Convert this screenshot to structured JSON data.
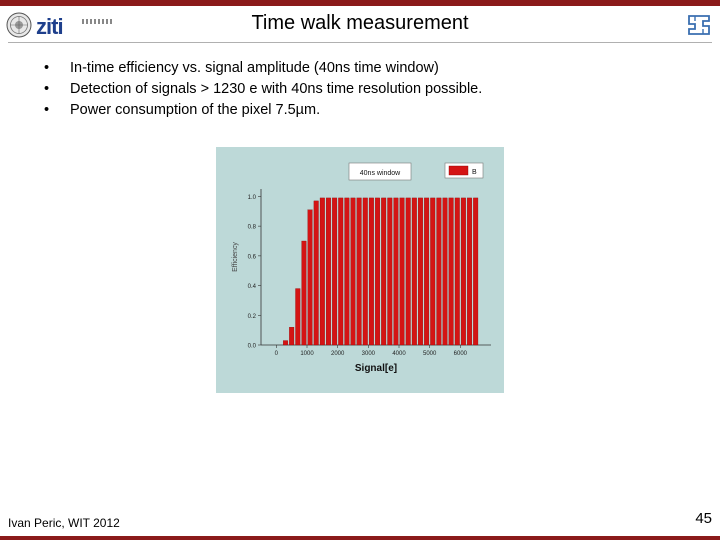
{
  "slide": {
    "title": "Time walk measurement",
    "bullets": [
      "In-time efficiency vs. signal amplitude (40ns time window)",
      "Detection of signals > 1230 e with 40ns time resolution possible.",
      "Power consumption of the pixel 7.5µm."
    ],
    "bullet_glyph": "•",
    "footer": "Ivan Peric, WIT 2012",
    "page_number": "45",
    "accent_color": "#8b1a1a"
  },
  "logos": {
    "left_seal": "university-seal-icon",
    "left_wordmark": "ziti",
    "right": "institute-logo-icon"
  },
  "chart_data": {
    "type": "bar",
    "title_box": "40ns window",
    "legend": [
      "B"
    ],
    "xlabel": "Signal[e]",
    "ylabel": "Efficiency",
    "xlim": [
      -500,
      7000
    ],
    "ylim": [
      0,
      1.05
    ],
    "xticks": [
      "0",
      "1000",
      "2000",
      "3000",
      "4000",
      "5000",
      "6000"
    ],
    "yticks": [
      "0.0",
      "0.2",
      "0.4",
      "0.6",
      "0.8",
      "1.0"
    ],
    "bar_color": "#d41414",
    "background": "#bdd9d8",
    "bar_width": 150,
    "x": [
      300,
      500,
      700,
      900,
      1100,
      1300,
      1500,
      1700,
      1900,
      2100,
      2300,
      2500,
      2700,
      2900,
      3100,
      3300,
      3500,
      3700,
      3900,
      4100,
      4300,
      4500,
      4700,
      4900,
      5100,
      5300,
      5500,
      5700,
      5900,
      6100,
      6300,
      6500
    ],
    "values": [
      0.03,
      0.12,
      0.38,
      0.7,
      0.91,
      0.97,
      0.99,
      0.99,
      0.99,
      0.99,
      0.99,
      0.99,
      0.99,
      0.99,
      0.99,
      0.99,
      0.99,
      0.99,
      0.99,
      0.99,
      0.99,
      0.99,
      0.99,
      0.99,
      0.99,
      0.99,
      0.99,
      0.99,
      0.99,
      0.99,
      0.99,
      0.99
    ]
  }
}
